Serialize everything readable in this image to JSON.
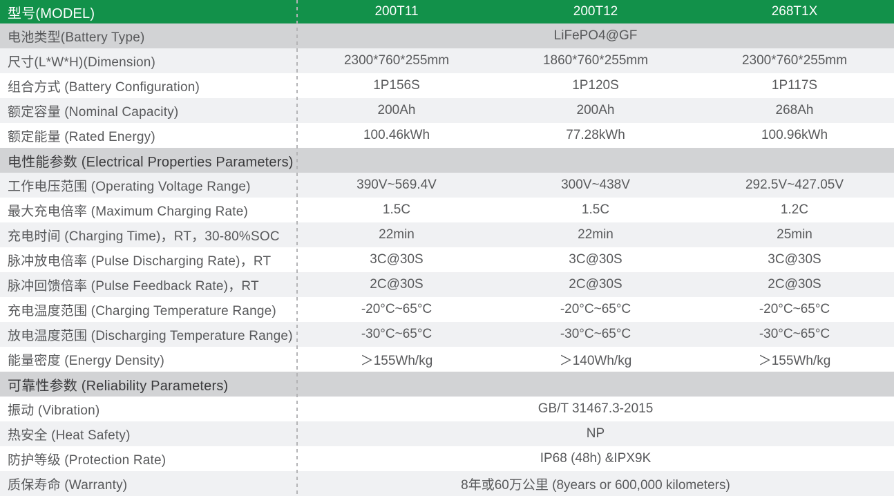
{
  "header": {
    "model_label": "型号(MODEL)",
    "columns": [
      "200T11",
      "200T12",
      "268T1X"
    ]
  },
  "rows": [
    {
      "type": "merged",
      "label": "电池类型(Battery Type)",
      "value": "LiFePO4@GF"
    },
    {
      "type": "data",
      "label": "尺寸(L*W*H)(Dimension)",
      "values": [
        "2300*760*255mm",
        "1860*760*255mm",
        "2300*760*255mm"
      ]
    },
    {
      "type": "data",
      "label": "组合方式 (Battery Configuration)",
      "values": [
        "1P156S",
        "1P120S",
        "1P117S"
      ]
    },
    {
      "type": "data",
      "label": "额定容量 (Nominal Capacity)",
      "values": [
        "200Ah",
        "200Ah",
        "268Ah"
      ]
    },
    {
      "type": "data",
      "label": "额定能量 (Rated Energy)",
      "values": [
        "100.46kWh",
        "77.28kWh",
        "100.96kWh"
      ]
    },
    {
      "type": "section",
      "label": "电性能参数 (Electrical Properties Parameters)"
    },
    {
      "type": "data",
      "label": "工作电压范围 (Operating Voltage Range)",
      "values": [
        "390V~569.4V",
        "300V~438V",
        "292.5V~427.05V"
      ]
    },
    {
      "type": "data",
      "label": "最大充电倍率 (Maximum Charging Rate)",
      "values": [
        "1.5C",
        "1.5C",
        "1.2C"
      ]
    },
    {
      "type": "data",
      "label": "充电时间 (Charging Time)，RT，30-80%SOC",
      "values": [
        "22min",
        "22min",
        "25min"
      ]
    },
    {
      "type": "data",
      "label": "脉冲放电倍率 (Pulse Discharging Rate)，RT",
      "values": [
        "3C@30S",
        "3C@30S",
        "3C@30S"
      ]
    },
    {
      "type": "data",
      "label": "脉冲回馈倍率 (Pulse Feedback Rate)，RT",
      "values": [
        "2C@30S",
        "2C@30S",
        "2C@30S"
      ]
    },
    {
      "type": "data",
      "label": "充电温度范围 (Charging Temperature Range)",
      "values": [
        "-20°C~65°C",
        "-20°C~65°C",
        "-20°C~65°C"
      ]
    },
    {
      "type": "data",
      "label": "放电温度范围 (Discharging Temperature Range)",
      "values": [
        "-30°C~65°C",
        "-30°C~65°C",
        "-30°C~65°C"
      ]
    },
    {
      "type": "data",
      "label": "能量密度 (Energy Density)",
      "values": [
        "＞155Wh/kg",
        "＞140Wh/kg",
        "＞155Wh/kg"
      ]
    },
    {
      "type": "section",
      "label": "可靠性参数 (Reliability Parameters)"
    },
    {
      "type": "merged",
      "label": "振动 (Vibration)",
      "value": "GB/T 31467.3-2015"
    },
    {
      "type": "merged",
      "label": "热安全 (Heat Safety)",
      "value": "NP"
    },
    {
      "type": "merged",
      "label": "防护等级 (Protection Rate)",
      "value": "IP68 (48h) &IPX9K"
    },
    {
      "type": "merged",
      "label": "质保寿命 (Warranty)",
      "value": "8年或60万公里 (8years or 600,000 kilometers)"
    }
  ],
  "colors": {
    "header_green": "#12914A",
    "section_gray": "#D2D3D5",
    "stripe_gray": "#F0F1F3",
    "label_text": "#58595B",
    "section_text": "#3A3A3C",
    "divider_gray": "#B4B4B6"
  }
}
